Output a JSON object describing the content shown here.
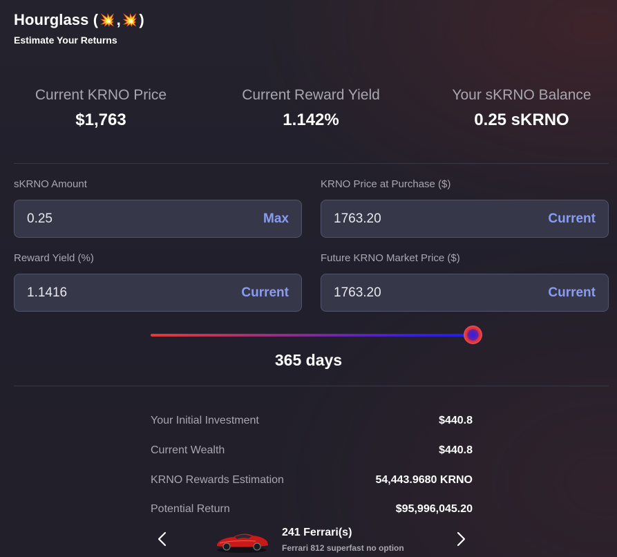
{
  "header": {
    "title_prefix": "Hourglass (",
    "title_sep": ",",
    "title_suffix": ")",
    "subtitle": "Estimate Your Returns"
  },
  "stats": [
    {
      "label": "Current KRNO Price",
      "value": "$1,763"
    },
    {
      "label": "Current Reward Yield",
      "value": "1.142%"
    },
    {
      "label": "Your sKRNO Balance",
      "value": "0.25 sKRNO"
    }
  ],
  "form": {
    "skrno_amount": {
      "label": "sKRNO Amount",
      "value": "0.25",
      "action": "Max"
    },
    "purchase_price": {
      "label": "KRNO Price at Purchase ($)",
      "value": "1763.20",
      "action": "Current"
    },
    "reward_yield": {
      "label": "Reward Yield (%)",
      "value": "1.1416",
      "action": "Current"
    },
    "future_price": {
      "label": "Future KRNO Market Price ($)",
      "value": "1763.20",
      "action": "Current"
    }
  },
  "slider": {
    "level": 1.0,
    "days_label": "365 days"
  },
  "results": [
    {
      "label": "Your Initial Investment",
      "value": "$440.8"
    },
    {
      "label": "Current Wealth",
      "value": "$440.8"
    },
    {
      "label": "KRNO Rewards Estimation",
      "value": "54,443.9680 KRNO"
    },
    {
      "label": "Potential Return",
      "value": "$95,996,045.20"
    }
  ],
  "carousel": {
    "title": "241 Ferrari(s)",
    "description": "Ferrari 812 superfast no option",
    "icons": {
      "prev": "chevron-left-icon",
      "next": "chevron-right-icon",
      "image": "ferrari-car-image"
    }
  },
  "colors": {
    "accent": "#8a9cf2",
    "input_bg": "#363849",
    "muted_text": "#a9a6b0",
    "slider_start": "#e13b36",
    "slider_end": "#1d1ef0"
  }
}
